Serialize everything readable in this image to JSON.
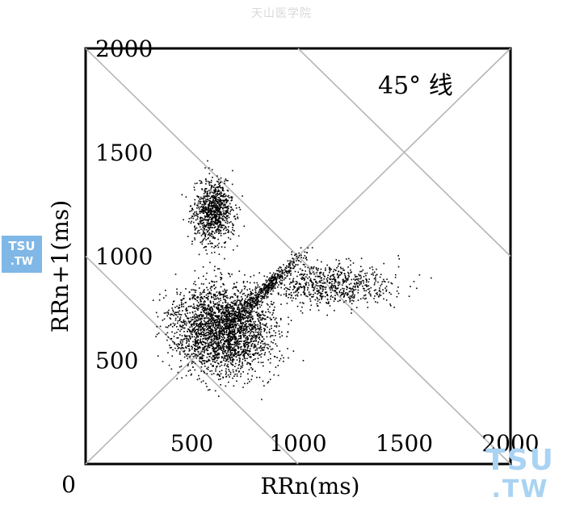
{
  "watermark": {
    "top_text": "天山医学院",
    "logo_line1": "TSU",
    "logo_line2": ".TW"
  },
  "chart_data": {
    "type": "scatter",
    "xlabel": "RRn(ms)",
    "ylabel": "RRn+1(ms)",
    "origin_label": "0",
    "xlim": [
      0,
      2000
    ],
    "ylim": [
      0,
      2000
    ],
    "x_ticks": [
      500,
      1000,
      1500,
      2000
    ],
    "y_ticks": [
      500,
      1000,
      1500,
      2000
    ],
    "annotation": "45° 线",
    "reference_lines": {
      "identity": "45°",
      "perpendicular_sums": [
        1000,
        2000,
        3000
      ]
    },
    "clusters": [
      {
        "center": [
          650,
          650
        ],
        "spread": [
          200,
          180
        ],
        "density": "very high"
      },
      {
        "center": [
          600,
          1220
        ],
        "spread": [
          80,
          130
        ],
        "density": "high"
      },
      {
        "center": [
          1150,
          870
        ],
        "spread": [
          250,
          90
        ],
        "density": "medium"
      },
      {
        "center": [
          850,
          850
        ],
        "spread": [
          150,
          150
        ],
        "density": "along identity line"
      }
    ],
    "grid": false,
    "legend": "none"
  }
}
